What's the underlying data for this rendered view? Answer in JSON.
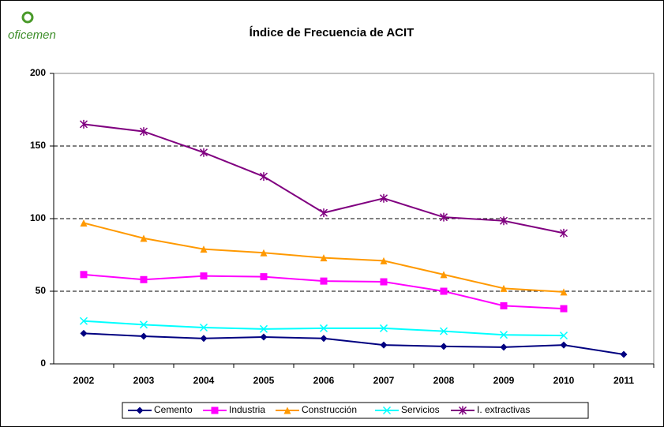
{
  "logo": "oficemen",
  "chart_data": {
    "type": "line",
    "title": "Índice de Frecuencia de ACIT",
    "categories": [
      "2002",
      "2003",
      "2004",
      "2005",
      "2006",
      "2007",
      "2008",
      "2009",
      "2010",
      "2011"
    ],
    "ylim": [
      0,
      200
    ],
    "yticks": [
      0,
      50,
      100,
      150,
      200
    ],
    "grid": true,
    "legend": "bottom",
    "series": [
      {
        "name": "Cemento",
        "color": "#000080",
        "marker": "diamond",
        "values": [
          21,
          19,
          17.5,
          18.5,
          17.5,
          13,
          12,
          11.5,
          13,
          6.5
        ]
      },
      {
        "name": "Industria",
        "color": "#ff00ff",
        "marker": "square",
        "values": [
          61.5,
          58,
          60.5,
          60,
          57,
          56.5,
          50,
          40,
          38,
          null
        ]
      },
      {
        "name": "Construcción",
        "color": "#ff9900",
        "marker": "triangle",
        "values": [
          97,
          86.5,
          79,
          76.5,
          73,
          71,
          61.5,
          52,
          49.5,
          null
        ]
      },
      {
        "name": "Servicios",
        "color": "#00ffff",
        "marker": "x",
        "values": [
          29.5,
          27,
          25,
          24,
          24.5,
          24.5,
          22.5,
          20,
          19.5,
          null
        ]
      },
      {
        "name": "I. extractivas",
        "color": "#800080",
        "marker": "star",
        "values": [
          165,
          160,
          145.5,
          129,
          104,
          114,
          101,
          98.5,
          90,
          null
        ]
      }
    ]
  }
}
